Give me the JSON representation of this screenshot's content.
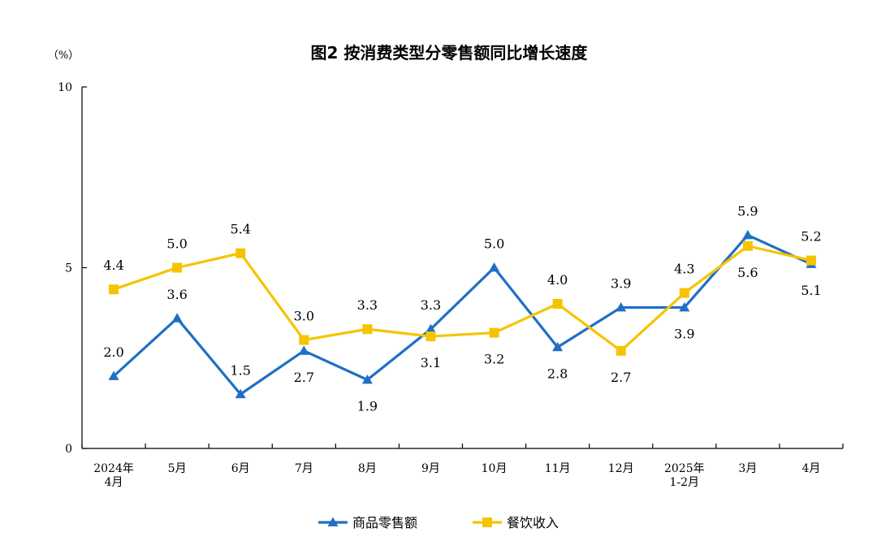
{
  "chart_data": {
    "type": "line",
    "title": "图2  按消费类型分零售额同比增长速度",
    "unit_label": "（%）",
    "ylim": [
      0,
      10
    ],
    "yticks": [
      "0",
      "5",
      "10"
    ],
    "grid": false,
    "legend_position": "bottom",
    "categories": [
      [
        "2024年",
        "4月"
      ],
      [
        "5月"
      ],
      [
        "6月"
      ],
      [
        "7月"
      ],
      [
        "8月"
      ],
      [
        "9月"
      ],
      [
        "10月"
      ],
      [
        "11月"
      ],
      [
        "12月"
      ],
      [
        "2025年",
        "1-2月"
      ],
      [
        "3月"
      ],
      [
        "4月"
      ]
    ],
    "series": [
      {
        "name": "商品零售额",
        "color": "#1f6fc5",
        "marker": "triangle",
        "values": [
          2.0,
          3.6,
          1.5,
          2.7,
          1.9,
          3.3,
          5.0,
          2.8,
          3.9,
          3.9,
          5.9,
          5.1
        ],
        "labels": [
          "2.0",
          "3.6",
          "1.5",
          "2.7",
          "1.9",
          "3.3",
          "5.0",
          "2.8",
          "3.9",
          "3.9",
          "5.9",
          "5.1"
        ],
        "label_side": [
          "above",
          "above",
          "above",
          "below",
          "below",
          "above",
          "above",
          "below",
          "above",
          "below",
          "above",
          "below"
        ]
      },
      {
        "name": "餐饮收入",
        "color": "#f5c400",
        "marker": "square",
        "values": [
          4.4,
          5.0,
          5.4,
          3.0,
          3.3,
          3.1,
          3.2,
          4.0,
          2.7,
          4.3,
          5.6,
          5.2
        ],
        "labels": [
          "4.4",
          "5.0",
          "5.4",
          "3.0",
          "3.3",
          "3.1",
          "3.2",
          "4.0",
          "2.7",
          "4.3",
          "5.6",
          "5.2"
        ],
        "label_side": [
          "above",
          "above",
          "above",
          "above",
          "above",
          "below",
          "below",
          "above",
          "below",
          "above",
          "below",
          "above"
        ]
      }
    ]
  }
}
